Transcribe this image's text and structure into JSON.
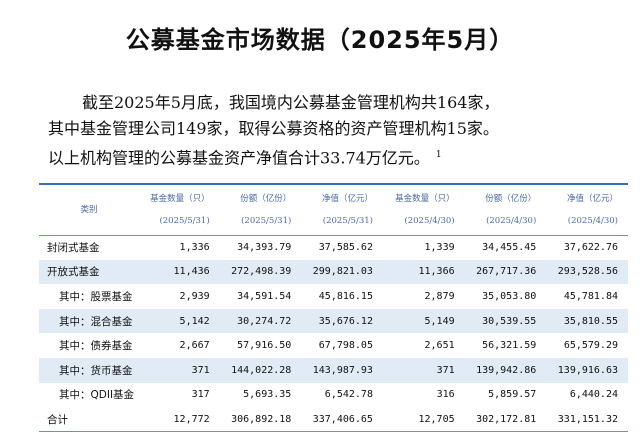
{
  "title": "公募基金市场数据（2025年5月）",
  "paragraph": {
    "line1": "截至2025年5月底，我国境内公募基金管理机构共164家，",
    "line2": "其中基金管理公司149家，取得公募资格的资产管理机构15家。",
    "line3": "以上机构管理的公募基金资产净值合计33.74万亿元。",
    "footnote": "1"
  },
  "table": {
    "category_header": "类别",
    "headers": [
      {
        "label": "基金数量（只）",
        "date": "(2025/5/31)"
      },
      {
        "label": "份额（亿份）",
        "date": "(2025/5/31)"
      },
      {
        "label": "净值（亿元）",
        "date": "(2025/5/31)"
      },
      {
        "label": "基金数量（只）",
        "date": "(2025/4/30)"
      },
      {
        "label": "份额（亿份）",
        "date": "(2025/4/30)"
      },
      {
        "label": "净值（亿元）",
        "date": "(2025/4/30)"
      }
    ],
    "rows": [
      {
        "label": "封闭式基金",
        "values": [
          "1,336",
          "34,393.79",
          "37,585.62",
          "1,339",
          "34,455.45",
          "37,622.76"
        ]
      },
      {
        "label": "开放式基金",
        "values": [
          "11,436",
          "272,498.39",
          "299,821.03",
          "11,366",
          "267,717.36",
          "293,528.56"
        ]
      },
      {
        "label": "其中：股票基金",
        "values": [
          "2,939",
          "34,591.54",
          "45,816.15",
          "2,879",
          "35,053.80",
          "45,781.84"
        ]
      },
      {
        "label": "其中：混合基金",
        "values": [
          "5,142",
          "30,274.72",
          "35,676.12",
          "5,149",
          "30,539.55",
          "35,810.55"
        ]
      },
      {
        "label": "其中：债券基金",
        "values": [
          "2,667",
          "57,916.50",
          "67,798.05",
          "2,651",
          "56,321.59",
          "65,579.29"
        ]
      },
      {
        "label": "其中：货币基金",
        "values": [
          "371",
          "144,022.28",
          "143,987.93",
          "371",
          "139,942.86",
          "139,916.63"
        ]
      },
      {
        "label": "其中：QDII基金",
        "values": [
          "317",
          "5,693.35",
          "6,542.78",
          "316",
          "5,859.57",
          "6,440.24"
        ]
      },
      {
        "label": "合计",
        "values": [
          "12,772",
          "306,892.18",
          "337,406.65",
          "12,705",
          "302,172.81",
          "331,151.32"
        ]
      }
    ]
  }
}
